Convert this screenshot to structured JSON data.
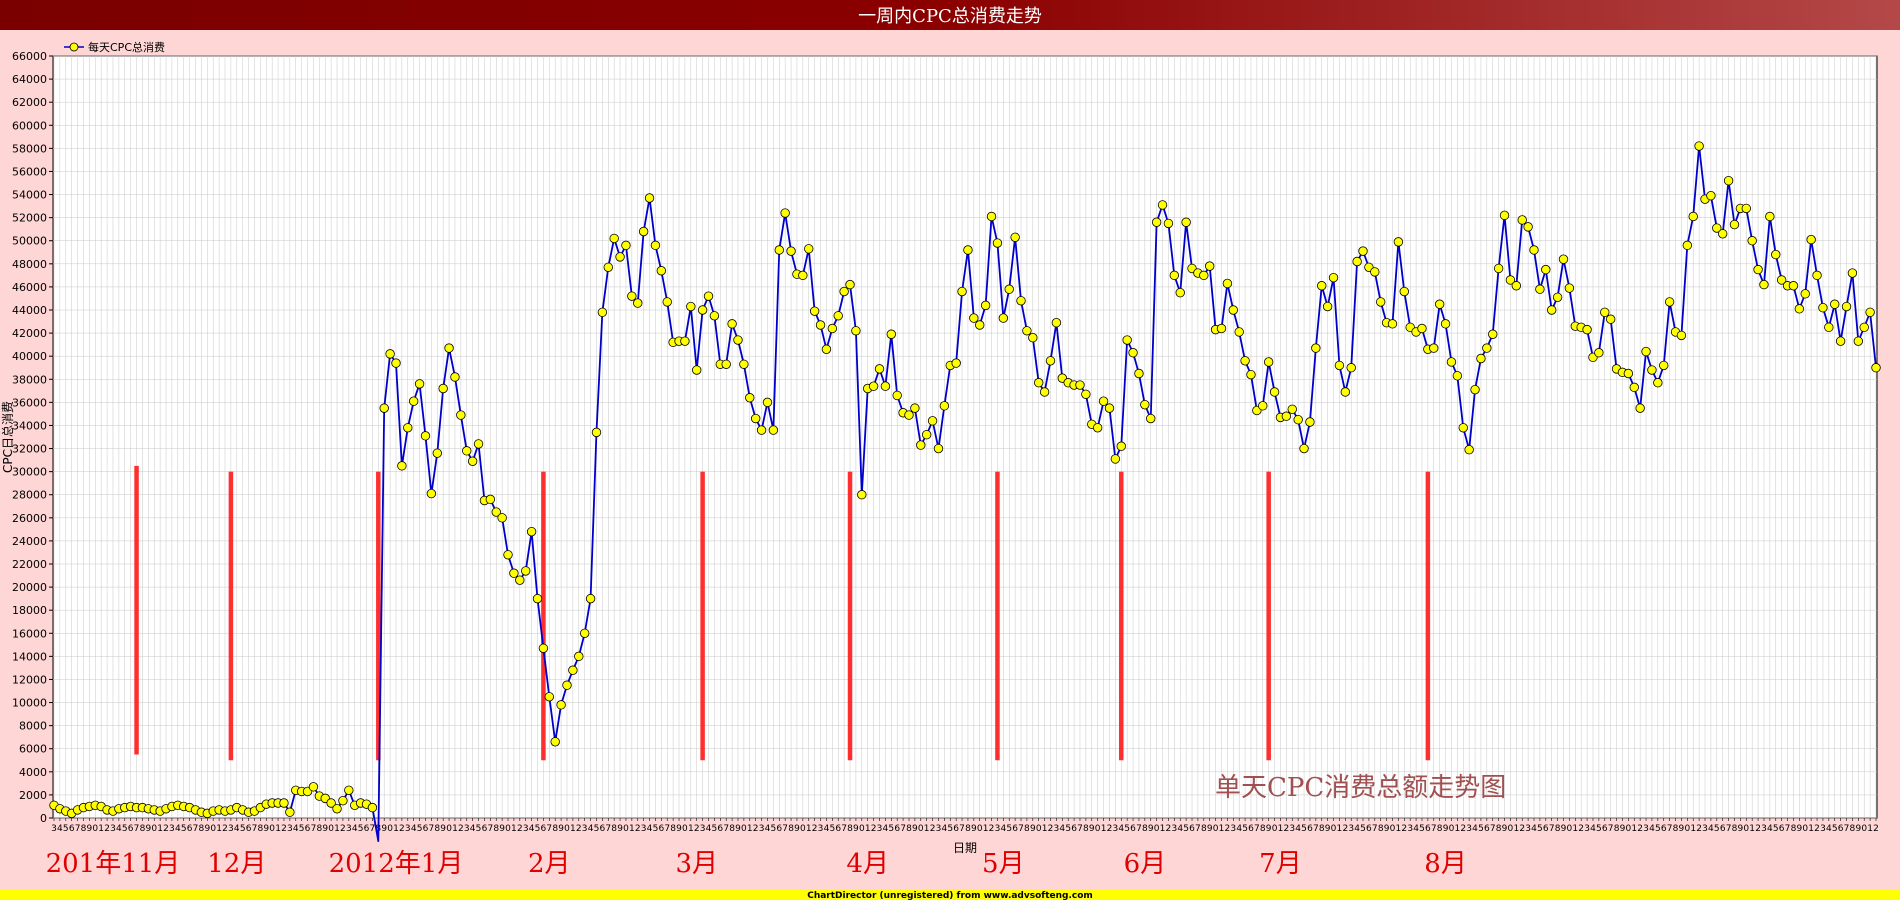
{
  "chart_data": {
    "type": "line",
    "title": "一周内CPC总消费走势",
    "xlabel": "日期",
    "ylabel": "CPC日总消费",
    "ylim": [
      0,
      66000
    ],
    "ytick_step": 2000,
    "grid": true,
    "legend_position": "top-left",
    "series": [
      {
        "name": "每天CPC总消费",
        "color": "#0000cc",
        "marker_color": "#ffff00",
        "values": [
          1100,
          800,
          600,
          400,
          700,
          900,
          1000,
          1100,
          1000,
          700,
          600,
          800,
          900,
          1000,
          900,
          900,
          800,
          700,
          600,
          800,
          1000,
          1100,
          1000,
          900,
          700,
          500,
          400,
          600,
          700,
          600,
          700,
          900,
          700,
          500,
          600,
          900,
          1200,
          1300,
          1300,
          1300,
          500,
          2400,
          2300,
          2300,
          2700,
          1900,
          1700,
          1300,
          800,
          1500,
          2400,
          1100,
          1300,
          1200,
          900,
          -2000,
          35500,
          40200,
          39400,
          30500,
          33800,
          36100,
          37600,
          33100,
          28100,
          31600,
          37200,
          40700,
          38200,
          34900,
          31800,
          30900,
          32400,
          27500,
          27600,
          26500,
          26000,
          22800,
          21200,
          20600,
          21400,
          24800,
          19000,
          14700,
          10500,
          6600,
          9800,
          11500,
          12800,
          14000,
          16000,
          19000,
          33400,
          43800,
          47700,
          50200,
          48600,
          49600,
          45200,
          44600,
          50800,
          53700,
          49600,
          47400,
          44700,
          41200,
          41300,
          41300,
          44300,
          38800,
          44000,
          45200,
          43500,
          39300,
          39300,
          42800,
          41400,
          39300,
          36400,
          34600,
          33600,
          36000,
          33600,
          49200,
          52400,
          49100,
          47100,
          47000,
          49300,
          43900,
          42700,
          40600,
          42400,
          43500,
          45600,
          46200,
          42200,
          28000,
          37200,
          37400,
          38900,
          37400,
          41900,
          36600,
          35100,
          34900,
          35500,
          32300,
          33200,
          34400,
          32000,
          35700,
          39200,
          39400,
          45600,
          49200,
          43300,
          42700,
          44400,
          52100,
          49800,
          43300,
          45800,
          50300,
          44800,
          42200,
          41600,
          37700,
          36900,
          39600,
          42900,
          38100,
          37700,
          37500,
          37500,
          36700,
          34100,
          33800,
          36100,
          35500,
          31100,
          32200,
          41400,
          40300,
          38500,
          35800,
          34600,
          51600,
          53100,
          51500,
          47000,
          45500,
          51600,
          47600,
          47200,
          47000,
          47800,
          42300,
          42400,
          46300,
          44000,
          42100,
          39600,
          38400,
          35300,
          35700,
          39500,
          36900,
          34700,
          34800,
          35400,
          34500,
          32000,
          34300,
          40700,
          46100,
          44300,
          46800,
          39200,
          36900,
          39000,
          48200,
          49100,
          47700,
          47300,
          44700,
          42900,
          42800,
          49900,
          45600,
          42500,
          42100,
          42400,
          40600,
          40700,
          44500,
          42800,
          39500,
          38300,
          33800,
          31900,
          37100,
          39800,
          40700,
          41900,
          47600,
          52200,
          46600,
          46100,
          51800,
          51200,
          49200,
          45800,
          47500,
          44000,
          45100,
          48400,
          45900,
          42600,
          42500,
          42300,
          39900,
          40300,
          43800,
          43200,
          38900,
          38600,
          38500,
          37300,
          35500,
          40400,
          38800,
          37700,
          39200,
          44700,
          42100,
          41800,
          49600,
          52100,
          58200,
          53600,
          53900,
          51100,
          50600,
          55200,
          51400,
          52800,
          52800,
          50000,
          47500,
          46200,
          52100,
          48800,
          46600,
          46100,
          46100,
          44100,
          45400,
          50100,
          47000,
          44200,
          42500,
          44500,
          41300,
          44300,
          47200,
          41300,
          42500,
          43800,
          39000
        ]
      }
    ],
    "x_tick_labels": "345678901234567890123456789012345678901234567890123456789012345678901234567890123456789012345678901234567890123456789012345678901234567890123456789012345678901234567890123456789012345678901234567890123456789012345678901234567890123456789012345678901234567890123456789012345678901234567890123456789012345678901234567890123456789012345678901234567890123456789012345678901234567890123456789012345678901",
    "annotations": {
      "month_labels": [
        {
          "text": "201年11月",
          "index": 10
        },
        {
          "text": "12月",
          "index": 31
        },
        {
          "text": "2012年1月",
          "index": 58
        },
        {
          "text": "2月",
          "index": 84
        },
        {
          "text": "3月",
          "index": 109
        },
        {
          "text": "4月",
          "index": 138
        },
        {
          "text": "5月",
          "index": 161
        },
        {
          "text": "6月",
          "index": 185
        },
        {
          "text": "7月",
          "index": 208
        },
        {
          "text": "8月",
          "index": 236
        }
      ],
      "red_markers": [
        14,
        30,
        55,
        83,
        110,
        135,
        160,
        181,
        206,
        233
      ],
      "watermark": "单天CPC消费总额走势图"
    },
    "footer": "ChartDirector (unregistered) from www.advsofteng.com"
  }
}
